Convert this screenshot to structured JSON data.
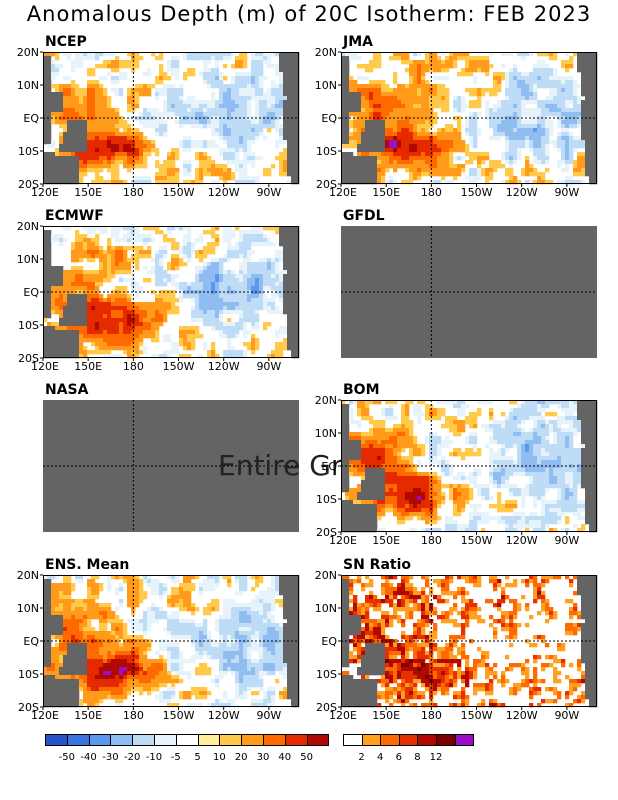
{
  "title": "Anomalous Depth (m) of 20C Isotherm: FEB 2023",
  "lat_labels": [
    "20N",
    "10N",
    "EQ",
    "10S",
    "20S"
  ],
  "lon_labels": [
    "120E",
    "150E",
    "180",
    "150W",
    "120W",
    "90W"
  ],
  "panels": [
    {
      "id": "ncep",
      "label": "NCEP",
      "status": "data",
      "kind": "anomaly"
    },
    {
      "id": "jma",
      "label": "JMA",
      "status": "data",
      "kind": "anomaly"
    },
    {
      "id": "ecmwf",
      "label": "ECMWF",
      "status": "data",
      "kind": "anomaly"
    },
    {
      "id": "gfdl",
      "label": "GFDL",
      "status": "missing",
      "kind": "anomaly"
    },
    {
      "id": "nasa",
      "label": "NASA",
      "status": "missing",
      "kind": "anomaly",
      "overlay_text": "Entire Gr"
    },
    {
      "id": "bom",
      "label": "BOM",
      "status": "data",
      "kind": "anomaly"
    },
    {
      "id": "ens",
      "label": "ENS. Mean",
      "status": "data",
      "kind": "anomaly"
    },
    {
      "id": "snr",
      "label": "SN Ratio",
      "status": "data",
      "kind": "snr"
    }
  ],
  "colors": {
    "missing": "#646464",
    "land": "#646464",
    "anomaly_scale": [
      "#2554c8",
      "#3a74e0",
      "#5b97ec",
      "#8fbdf2",
      "#bfdcf6",
      "#e7f3fb",
      "#ffffff",
      "#ffef9a",
      "#ffc94a",
      "#ff9a1a",
      "#ff6a00",
      "#e62a00",
      "#b00a00",
      "#7a0000",
      "#9a10c8"
    ],
    "snr_scale": [
      "#ffffff",
      "#ffa020",
      "#ff6a00",
      "#e63000",
      "#b00a00",
      "#7a0000",
      "#9a10c8"
    ]
  },
  "colorbar_anomaly": {
    "ticks": [
      "-50",
      "-40",
      "-30",
      "-20",
      "-10",
      "-5",
      "5",
      "10",
      "20",
      "30",
      "40",
      "50"
    ]
  },
  "colorbar_snr": {
    "ticks": [
      "2",
      "4",
      "6",
      "8",
      "12"
    ]
  }
}
